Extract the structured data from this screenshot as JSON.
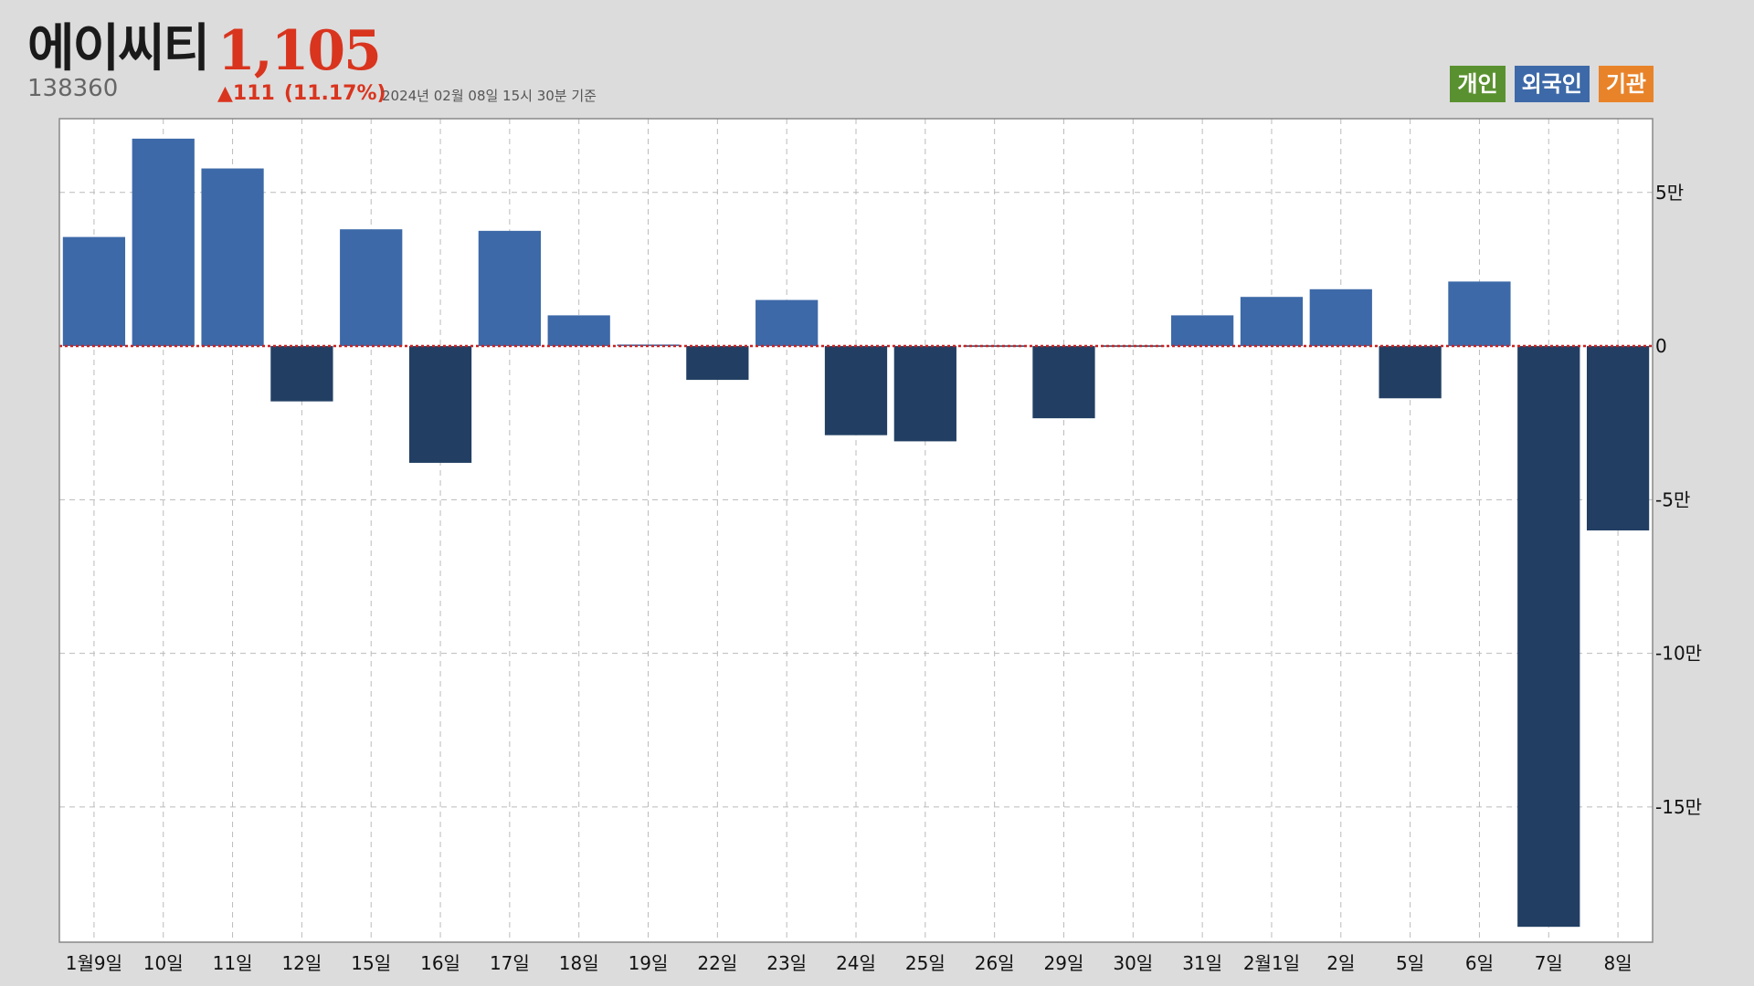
{
  "stock": {
    "name": "에이씨티",
    "code": "138360",
    "price": "1,105",
    "change": "▲111",
    "change_pct": "(11.17%)",
    "timestamp": "2024년 02월 08일 15시 30분 기준"
  },
  "legend": [
    {
      "label": "개인",
      "color": "#5a9130"
    },
    {
      "label": "외국인",
      "color": "#3d69a8"
    },
    {
      "label": "기관",
      "color": "#e8832a"
    }
  ],
  "colors": {
    "positive_bar": "#3d69a8",
    "negative_bar": "#223f63",
    "zero_line": "#cc2222",
    "grid": "#bbbbbb",
    "plot_border": "#888888",
    "plot_bg": "#ffffff"
  },
  "chart_data": {
    "type": "bar",
    "series_name": "외국인",
    "categories": [
      "1월9일",
      "10일",
      "11일",
      "12일",
      "15일",
      "16일",
      "17일",
      "18일",
      "19일",
      "22일",
      "23일",
      "24일",
      "25일",
      "26일",
      "29일",
      "30일",
      "31일",
      "2월1일",
      "2일",
      "5일",
      "6일",
      "7일",
      "8일"
    ],
    "values": [
      35500,
      67500,
      57800,
      -18000,
      38000,
      -38000,
      37500,
      10000,
      500,
      -11000,
      15000,
      -29000,
      -31000,
      -300,
      -23500,
      -300,
      10000,
      16000,
      18500,
      -17000,
      21000,
      -189000,
      -60000
    ],
    "yticks": [
      50000,
      0,
      -50000,
      -100000,
      -150000
    ],
    "ytick_labels": [
      "5만",
      "0",
      "-5만",
      "-10만",
      "-15만"
    ],
    "ylim": [
      -194000,
      74000
    ],
    "grid": true,
    "zero_line": true,
    "legend_position": "top-right"
  }
}
